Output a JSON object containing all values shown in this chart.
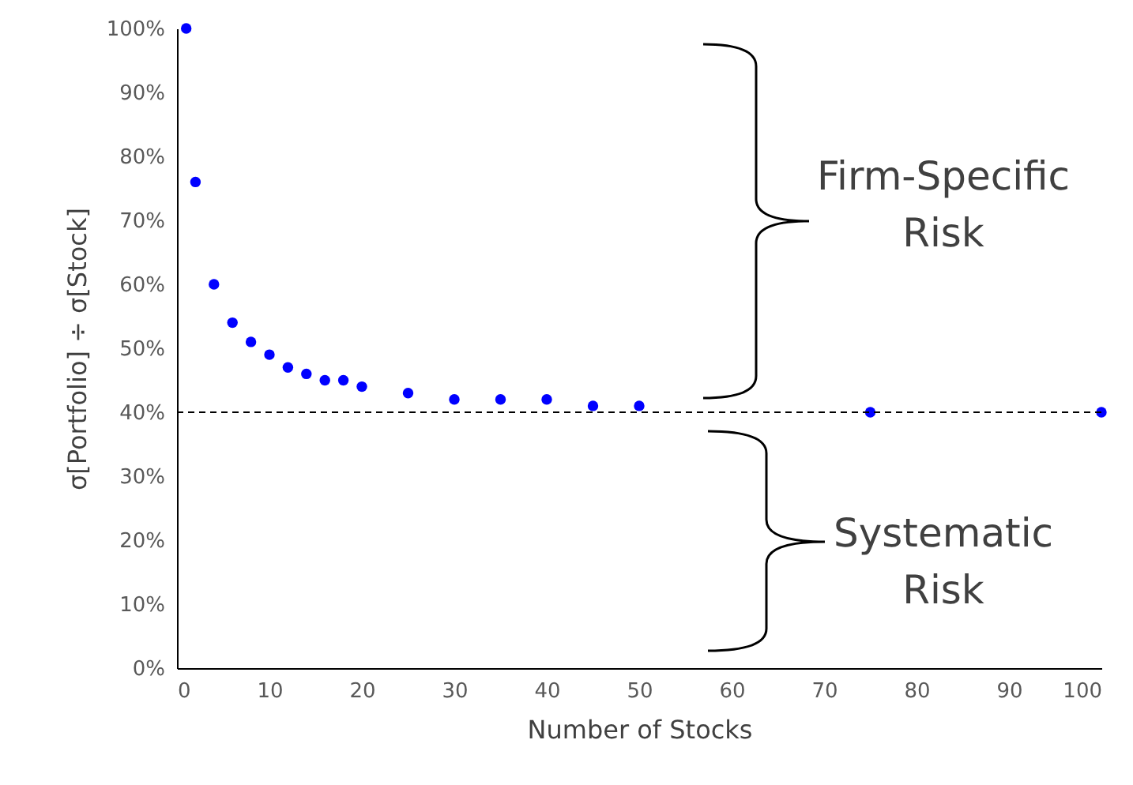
{
  "chart_data": {
    "type": "scatter",
    "xlabel": "Number of Stocks",
    "ylabel": "σ[Portfolio] ÷ σ[Stock]",
    "x": [
      1,
      2,
      4,
      6,
      8,
      10,
      12,
      14,
      16,
      18,
      20,
      25,
      30,
      35,
      40,
      45,
      50,
      75,
      100
    ],
    "series": [
      {
        "color": "#0000ff",
        "values": [
          100,
          76,
          60,
          54,
          51,
          49,
          47,
          46,
          45,
          45,
          44,
          43,
          42,
          42,
          42,
          41,
          41,
          40,
          40
        ]
      }
    ],
    "xlim": [
      0,
      100
    ],
    "xticks": [
      0,
      10,
      20,
      30,
      40,
      50,
      60,
      70,
      80,
      90,
      100
    ],
    "ylim": [
      0,
      100
    ],
    "yticks": [
      {
        "value": 0,
        "label": "0%"
      },
      {
        "value": 10,
        "label": "10%"
      },
      {
        "value": 20,
        "label": "20%"
      },
      {
        "value": 30,
        "label": "30%"
      },
      {
        "value": 40,
        "label": "40%"
      },
      {
        "value": 50,
        "label": "50%"
      },
      {
        "value": 60,
        "label": "60%"
      },
      {
        "value": 70,
        "label": "70%"
      },
      {
        "value": 80,
        "label": "80%"
      },
      {
        "value": 90,
        "label": "90%"
      },
      {
        "value": 100,
        "label": "100%"
      }
    ],
    "ref_lines": [
      {
        "axis": "y",
        "value": 40,
        "color": "#000000",
        "line_style": "dashed"
      }
    ],
    "annotations": [
      "Firm-Specific Risk",
      "Systematic Risk"
    ],
    "grid": false,
    "marker": "circle"
  }
}
